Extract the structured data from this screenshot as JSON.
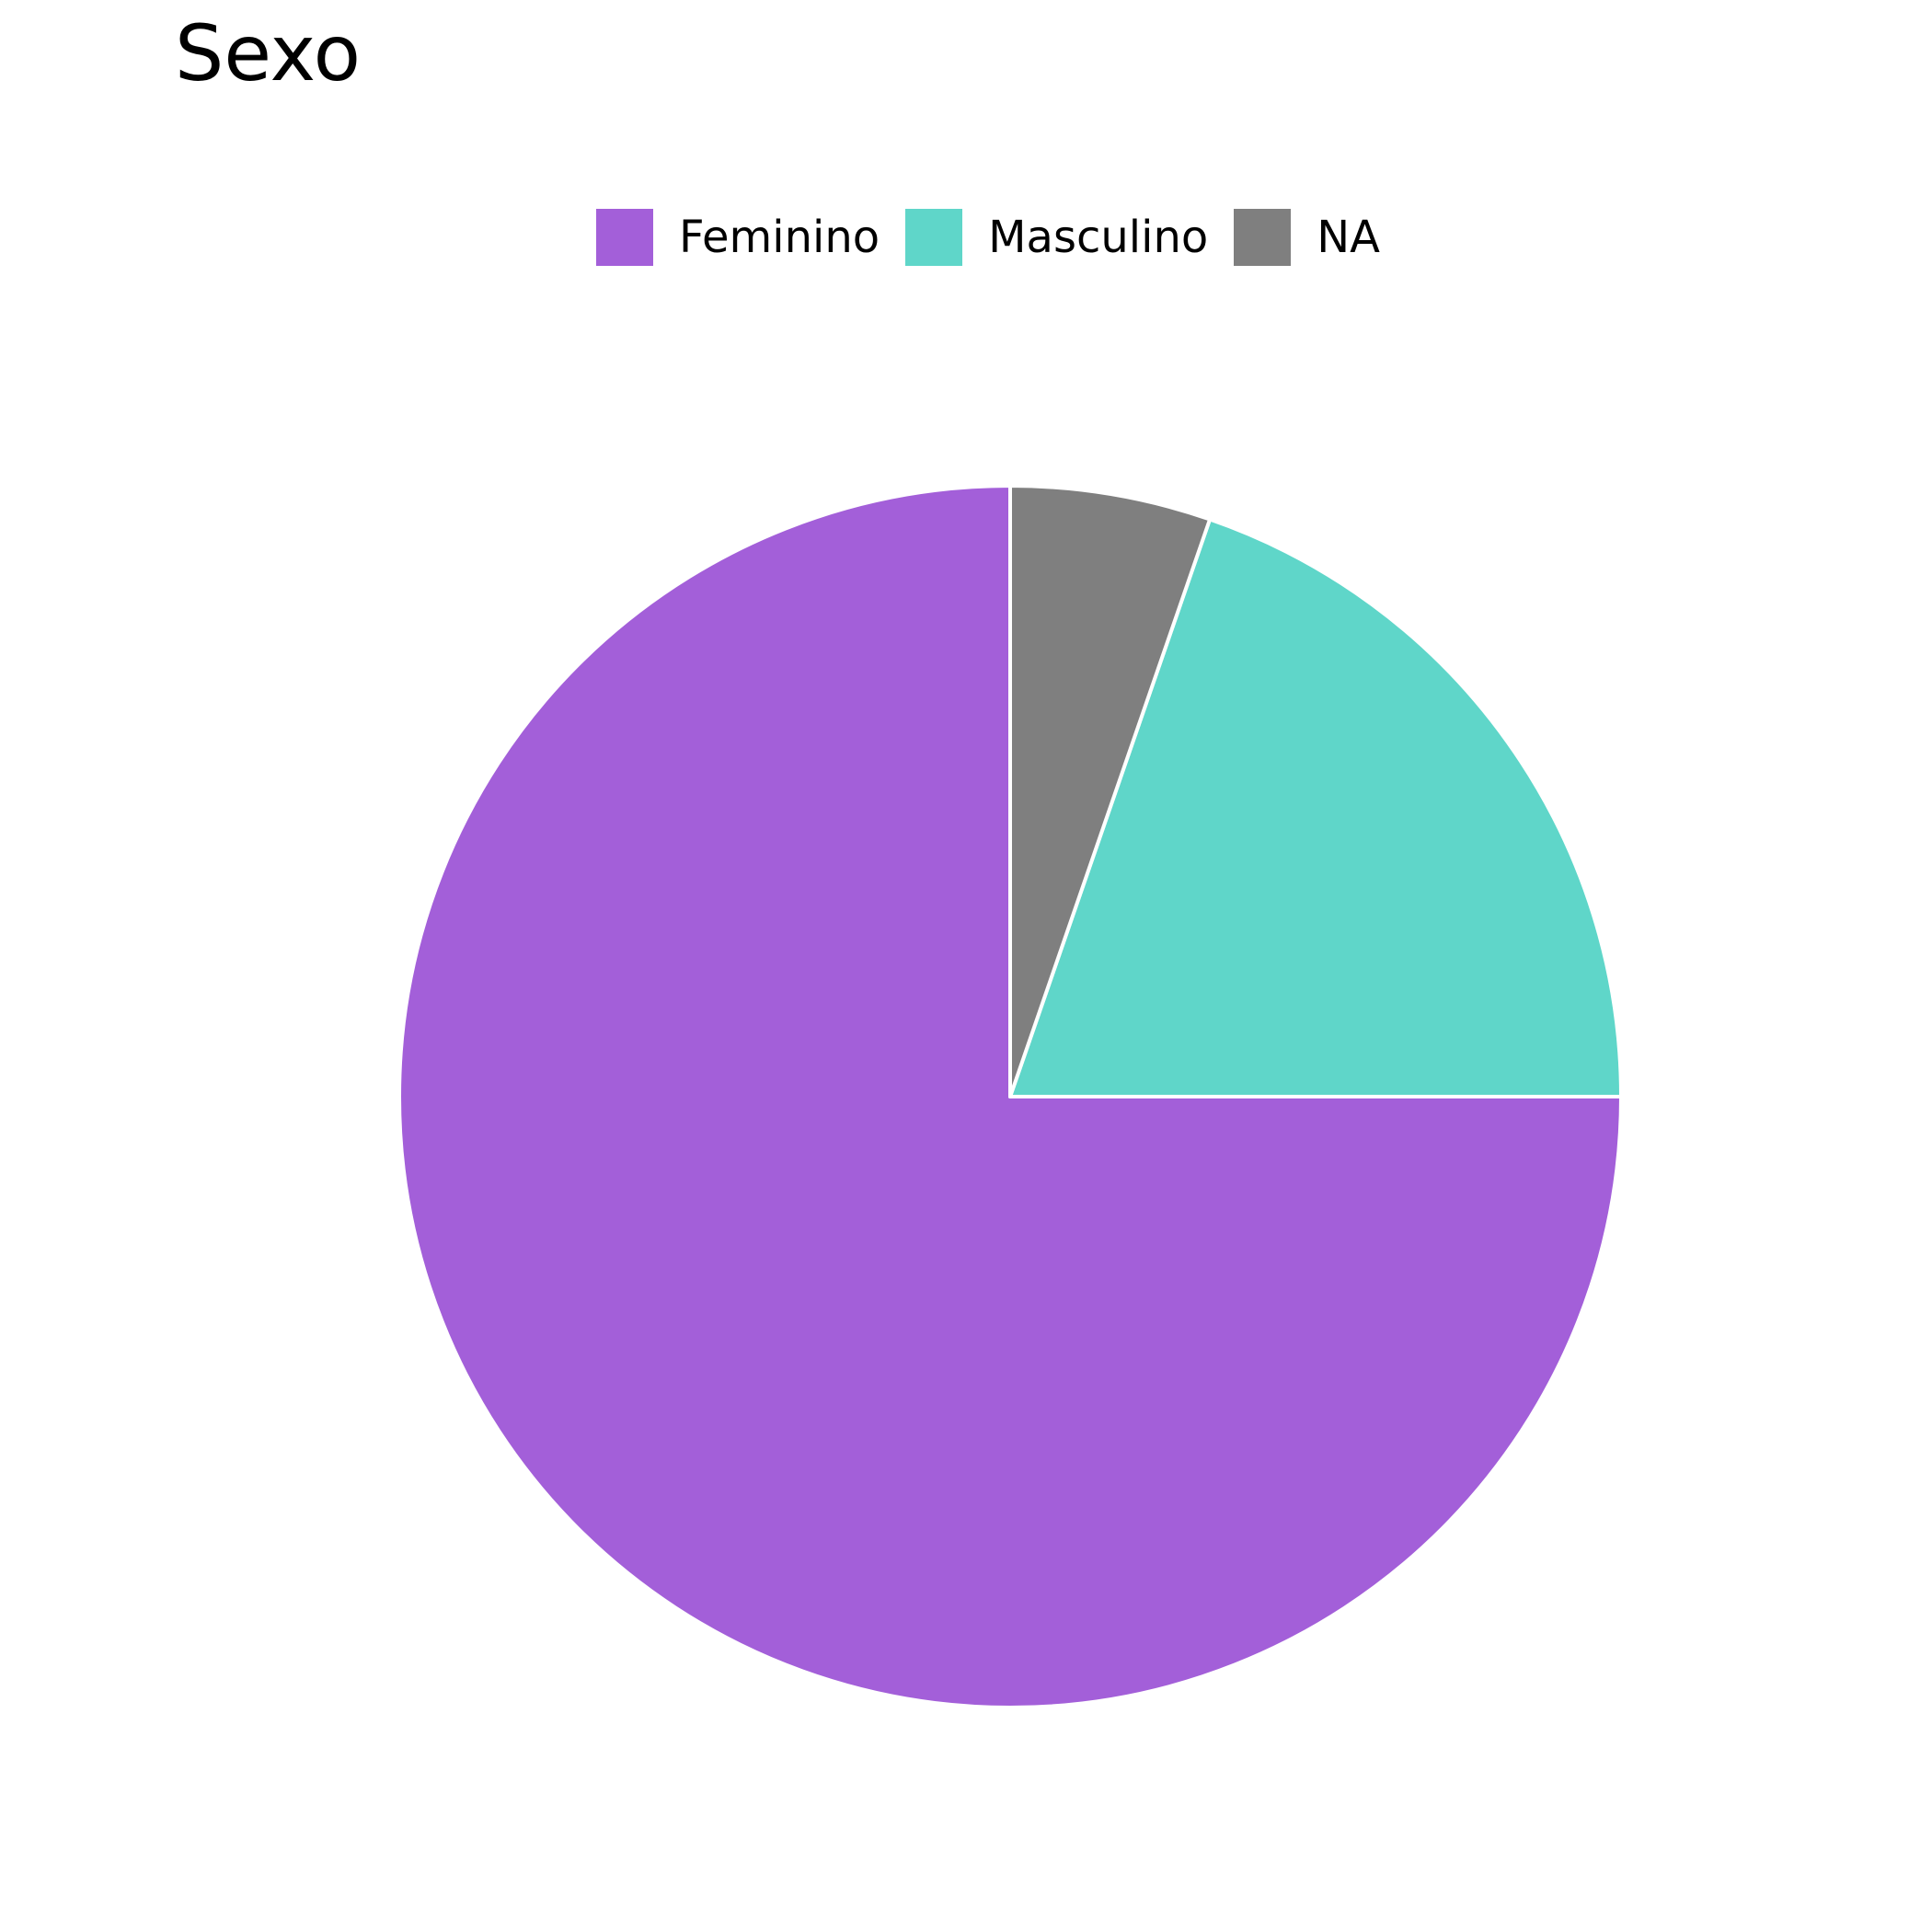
{
  "chart_data": {
    "type": "pie",
    "title": "Sexo",
    "categories": [
      "Feminino",
      "Masculino",
      "NA"
    ],
    "values": [
      75.0,
      19.7,
      5.3
    ],
    "colors": [
      "#a35fd9",
      "#5fd6c9",
      "#7f7f7f"
    ],
    "start_angle_deg": 0,
    "direction": "counterclockwise-from-top",
    "slice_border_color": "#ffffff",
    "legend_position": "top-center"
  }
}
